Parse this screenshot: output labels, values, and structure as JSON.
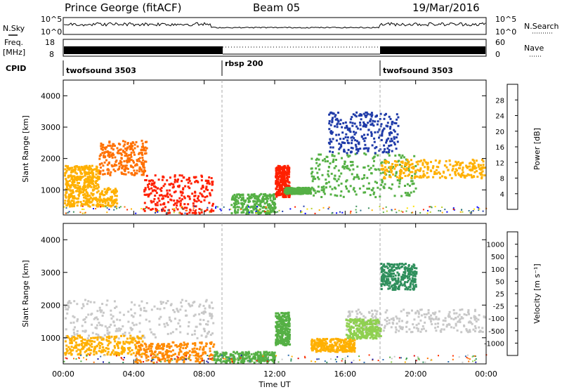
{
  "header": {
    "station": "Prince George (fitACF)",
    "beam": "Beam 05",
    "date": "19/Mar/2016"
  },
  "noise_panel": {
    "left_label": "N.Sky",
    "right_label": "N.Search",
    "left_ticks": [
      "10^5",
      "10^0"
    ],
    "right_ticks": [
      "10^5",
      "10^0"
    ]
  },
  "freq_panel": {
    "left_label_line1": "Freq.",
    "left_label_line2": "[MHz]",
    "left_ticks": [
      "18",
      "8"
    ],
    "right_label": "Nave",
    "right_ticks": [
      "60",
      "0"
    ]
  },
  "cpid_panel": {
    "label": "CPID",
    "segments": [
      {
        "name": "twofsound 3503",
        "start": 0
      },
      {
        "name": "rbsp 200",
        "start": 8.9
      },
      {
        "name": "twofsound 3503",
        "start": 17.9
      }
    ]
  },
  "chart_data": [
    {
      "type": "heatmap",
      "name": "power",
      "ylabel": "Slant Range [km]",
      "xlim": [
        0,
        24
      ],
      "ylim": [
        200,
        4500
      ],
      "yticks": [
        "1000",
        "2000",
        "3000",
        "4000"
      ],
      "colorbar": {
        "label": "Power [dB]",
        "ticks": [
          "28",
          "24",
          "20",
          "16",
          "12",
          "8",
          "4"
        ],
        "colors": [
          "#0000ff",
          "#1e3aa8",
          "#2f6f8f",
          "#3c8f5c",
          "#55b045",
          "#b8d12a",
          "#ffe000",
          "#ffb000",
          "#ff7000",
          "#ff2000"
        ]
      },
      "bands": [
        {
          "t0": 0,
          "t1": 2,
          "r0": 1100,
          "r1": 1800,
          "color": "#ffb000"
        },
        {
          "t0": 2,
          "t1": 4.7,
          "r0": 1500,
          "r1": 2600,
          "color": "#ff7000"
        },
        {
          "t0": 0,
          "t1": 3,
          "r0": 500,
          "r1": 1100,
          "color": "#ffb000"
        },
        {
          "t0": 4.5,
          "t1": 8.5,
          "r0": 250,
          "r1": 1500,
          "color": "#ff2000"
        },
        {
          "t0": 9.5,
          "t1": 12,
          "r0": 250,
          "r1": 900,
          "color": "#55b045"
        },
        {
          "t0": 12,
          "t1": 12.8,
          "r0": 800,
          "r1": 1800,
          "color": "#ff2000"
        },
        {
          "t0": 12.5,
          "t1": 14,
          "r0": 900,
          "r1": 1100,
          "color": "#55b045"
        },
        {
          "t0": 14,
          "t1": 20,
          "r0": 800,
          "r1": 2200,
          "color": "#55b045"
        },
        {
          "t0": 18,
          "t1": 24,
          "r0": 1400,
          "r1": 2000,
          "color": "#ffb000"
        },
        {
          "t0": 15,
          "t1": 19,
          "r0": 2200,
          "r1": 3500,
          "color": "#1e3aa8"
        }
      ]
    },
    {
      "type": "heatmap",
      "name": "velocity",
      "ylabel": "Slant Range [km]",
      "xlabel": "Time UT",
      "xlim": [
        0,
        24
      ],
      "ylim": [
        200,
        4500
      ],
      "yticks": [
        "1000",
        "2000",
        "3000",
        "4000"
      ],
      "xticks": [
        "00:00",
        "04:00",
        "08:00",
        "12:00",
        "16:00",
        "20:00",
        "00:00"
      ],
      "colorbar": {
        "label": "Velocity [m s⁻¹]",
        "ticks": [
          "1000",
          "500",
          "100",
          "50",
          "25",
          "-25",
          "-100",
          "-500",
          "-1000"
        ],
        "colors": [
          "#1414a8",
          "#2f6fb0",
          "#2f8f5c",
          "#55b045",
          "#8fd050",
          "#c8c8c8",
          "#c8c8c8",
          "#ffb000",
          "#ff7000",
          "#ff3000",
          "#e00000"
        ]
      },
      "bands": [
        {
          "t0": 0,
          "t1": 8.5,
          "r0": 1000,
          "r1": 2200,
          "color": "#c8c8c8"
        },
        {
          "t0": 0,
          "t1": 4.5,
          "r0": 500,
          "r1": 1100,
          "color": "#ffb000"
        },
        {
          "t0": 4,
          "t1": 8.5,
          "r0": 250,
          "r1": 900,
          "color": "#ff8a00"
        },
        {
          "t0": 8.5,
          "t1": 12,
          "r0": 250,
          "r1": 600,
          "color": "#55b045"
        },
        {
          "t0": 12,
          "t1": 12.8,
          "r0": 800,
          "r1": 1800,
          "color": "#55b045"
        },
        {
          "t0": 14,
          "t1": 16.5,
          "r0": 600,
          "r1": 1000,
          "color": "#ffb000"
        },
        {
          "t0": 16,
          "t1": 24,
          "r0": 1200,
          "r1": 1900,
          "color": "#c8c8c8"
        },
        {
          "t0": 16,
          "t1": 18,
          "r0": 1000,
          "r1": 1600,
          "color": "#8fd050"
        },
        {
          "t0": 18,
          "t1": 20,
          "r0": 2500,
          "r1": 3300,
          "color": "#2f8f5c"
        }
      ]
    }
  ]
}
